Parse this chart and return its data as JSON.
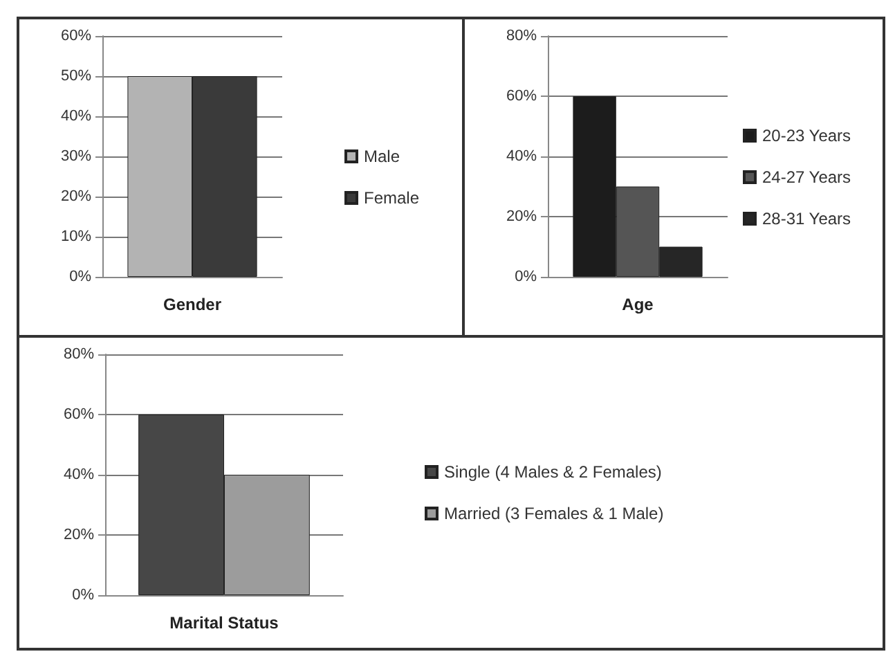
{
  "chart_data": [
    {
      "type": "bar",
      "categories": [
        "Gender"
      ],
      "series": [
        {
          "name": "Male",
          "color": "#b3b3b3",
          "values": [
            50
          ]
        },
        {
          "name": "Female",
          "color": "#3a3a3a",
          "values": [
            50
          ]
        }
      ],
      "ylim": [
        0,
        60
      ],
      "yticks": [
        {
          "value": 0,
          "label": "0%"
        },
        {
          "value": 10,
          "label": "10%"
        },
        {
          "value": 20,
          "label": "20%"
        },
        {
          "value": 30,
          "label": "30%"
        },
        {
          "value": 40,
          "label": "40%"
        },
        {
          "value": 50,
          "label": "50%"
        },
        {
          "value": 60,
          "label": "60%"
        }
      ],
      "grid": "y",
      "legend": "right"
    },
    {
      "type": "bar",
      "categories": [
        "Age"
      ],
      "series": [
        {
          "name": "20-23 Years",
          "color": "#1c1c1c",
          "values": [
            60
          ]
        },
        {
          "name": "24-27 Years",
          "color": "#555555",
          "values": [
            30
          ]
        },
        {
          "name": "28-31 Years",
          "color": "#262626",
          "values": [
            10
          ]
        }
      ],
      "ylim": [
        0,
        80
      ],
      "yticks": [
        {
          "value": 0,
          "label": "0%"
        },
        {
          "value": 20,
          "label": "20%"
        },
        {
          "value": 40,
          "label": "40%"
        },
        {
          "value": 60,
          "label": "60%"
        },
        {
          "value": 80,
          "label": "80%"
        }
      ],
      "grid": "y",
      "legend": "right"
    },
    {
      "type": "bar",
      "categories": [
        "Marital Status"
      ],
      "series": [
        {
          "name": "Single (4 Males & 2 Females)",
          "color": "#474747",
          "values": [
            60
          ]
        },
        {
          "name": "Married (3 Females & 1 Male)",
          "color": "#9c9c9c",
          "values": [
            40
          ]
        }
      ],
      "ylim": [
        0,
        80
      ],
      "yticks": [
        {
          "value": 0,
          "label": "0%"
        },
        {
          "value": 20,
          "label": "20%"
        },
        {
          "value": 40,
          "label": "40%"
        },
        {
          "value": 60,
          "label": "60%"
        },
        {
          "value": 80,
          "label": "80%"
        }
      ],
      "grid": "y",
      "legend": "right"
    }
  ]
}
